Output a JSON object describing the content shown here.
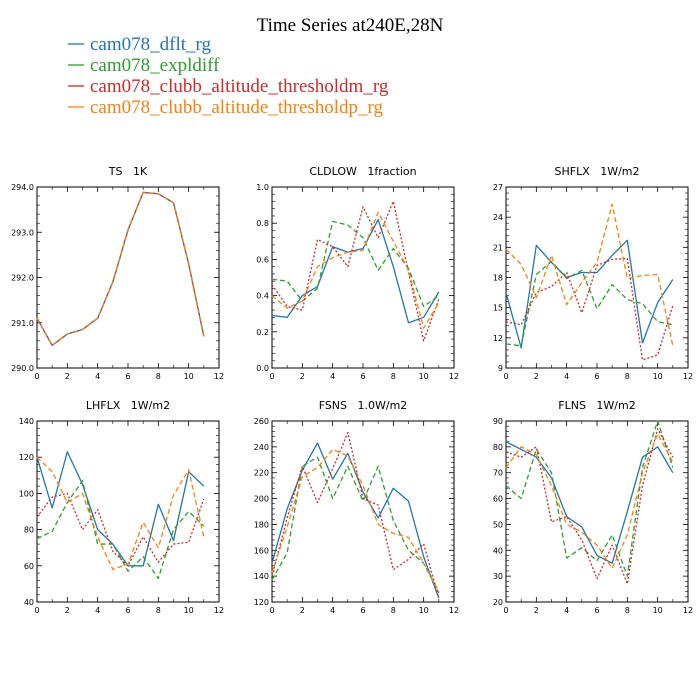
{
  "title": "Time Series at240E,28N",
  "legend": [
    {
      "name": "cam078_dflt_rg",
      "color": "#1f77b4",
      "dash": "solid"
    },
    {
      "name": "cam078_expldiff",
      "color": "#2ca02c",
      "dash": "dashed"
    },
    {
      "name": "cam078_clubb_altitude_thresholdm_rg",
      "color": "#d62728",
      "dash": "dotted"
    },
    {
      "name": "cam078_clubb_altitude_thresholdp_rg",
      "color": "#ff7f0e",
      "dash": "dashed"
    }
  ],
  "chart_data": [
    {
      "type": "line",
      "title": "TS  1K",
      "xlim": [
        0,
        12
      ],
      "ylim": [
        290.0,
        294.0
      ],
      "xticks": [
        "0",
        "2",
        "4",
        "6",
        "8",
        "10",
        "12"
      ],
      "yticks": [
        "290.0",
        "291.0",
        "292.0",
        "293.0",
        "294.0"
      ],
      "x": [
        0,
        1,
        2,
        3,
        4,
        5,
        6,
        7,
        8,
        9,
        10,
        11
      ],
      "series": [
        {
          "name": "cam078_dflt_rg",
          "values": [
            291.1,
            290.5,
            290.75,
            290.85,
            291.1,
            291.9,
            293.05,
            293.88,
            293.85,
            293.65,
            292.3,
            290.7
          ]
        },
        {
          "name": "cam078_expldiff",
          "values": [
            291.1,
            290.5,
            290.75,
            290.85,
            291.1,
            291.9,
            293.05,
            293.88,
            293.85,
            293.65,
            292.3,
            290.7
          ]
        },
        {
          "name": "cam078_clubb_altitude_thresholdm_rg",
          "values": [
            291.1,
            290.5,
            290.75,
            290.85,
            291.1,
            291.9,
            293.05,
            293.88,
            293.85,
            293.65,
            292.3,
            290.7
          ]
        },
        {
          "name": "cam078_clubb_altitude_thresholdp_rg",
          "values": [
            291.1,
            290.5,
            290.75,
            290.85,
            291.1,
            291.9,
            293.05,
            293.88,
            293.85,
            293.65,
            292.3,
            290.7
          ]
        }
      ]
    },
    {
      "type": "line",
      "title": "CLDLOW  1fraction",
      "xlim": [
        0,
        12
      ],
      "ylim": [
        0.0,
        1.0
      ],
      "xticks": [
        "0",
        "2",
        "4",
        "6",
        "8",
        "10",
        "12"
      ],
      "yticks": [
        "0.0",
        "0.2",
        "0.4",
        "0.6",
        "0.8",
        "1.0"
      ],
      "x": [
        0,
        1,
        2,
        3,
        4,
        5,
        6,
        7,
        8,
        9,
        10,
        11
      ],
      "series": [
        {
          "name": "cam078_dflt_rg",
          "values": [
            0.29,
            0.28,
            0.4,
            0.45,
            0.67,
            0.64,
            0.66,
            0.82,
            0.56,
            0.25,
            0.28,
            0.42
          ]
        },
        {
          "name": "cam078_expldiff",
          "values": [
            0.49,
            0.48,
            0.37,
            0.44,
            0.81,
            0.79,
            0.72,
            0.54,
            0.66,
            0.55,
            0.34,
            0.4
          ]
        },
        {
          "name": "cam078_clubb_altitude_thresholdm_rg",
          "values": [
            0.46,
            0.34,
            0.32,
            0.71,
            0.67,
            0.56,
            0.89,
            0.72,
            0.92,
            0.53,
            0.15,
            0.38
          ]
        },
        {
          "name": "cam078_clubb_altitude_thresholdp_rg",
          "values": [
            0.4,
            0.33,
            0.37,
            0.56,
            0.61,
            0.64,
            0.65,
            0.86,
            0.7,
            0.54,
            0.22,
            0.36
          ]
        }
      ]
    },
    {
      "type": "line",
      "title": "SHFLX  1W/m2",
      "xlim": [
        0,
        12
      ],
      "ylim": [
        9,
        27
      ],
      "xticks": [
        "0",
        "2",
        "4",
        "6",
        "8",
        "10",
        "12"
      ],
      "yticks": [
        "9",
        "12",
        "15",
        "18",
        "21",
        "24",
        "27"
      ],
      "x": [
        0,
        1,
        2,
        3,
        4,
        5,
        6,
        7,
        8,
        9,
        10,
        11
      ],
      "series": [
        {
          "name": "cam078_dflt_rg",
          "values": [
            16.5,
            11.0,
            21.2,
            19.5,
            18.0,
            18.5,
            18.5,
            20.2,
            21.7,
            11.5,
            15.5,
            17.8
          ]
        },
        {
          "name": "cam078_expldiff",
          "values": [
            11.4,
            11.2,
            18.3,
            19.6,
            17.9,
            18.7,
            14.9,
            17.3,
            15.8,
            15.4,
            13.6,
            13.3
          ]
        },
        {
          "name": "cam078_clubb_altitude_thresholdm_rg",
          "values": [
            13.6,
            13.3,
            16.5,
            17.1,
            18.5,
            14.5,
            19.2,
            19.8,
            19.9,
            9.8,
            10.3,
            15.2
          ]
        },
        {
          "name": "cam078_clubb_altitude_thresholdp_rg",
          "values": [
            20.8,
            19.3,
            16.0,
            20.2,
            15.3,
            17.5,
            19.5,
            25.3,
            17.9,
            18.2,
            18.3,
            11.2
          ]
        }
      ]
    },
    {
      "type": "line",
      "title": "LHFLX  1W/m2",
      "xlim": [
        0,
        12
      ],
      "ylim": [
        40,
        140
      ],
      "xticks": [
        "0",
        "2",
        "4",
        "6",
        "8",
        "10",
        "12"
      ],
      "yticks": [
        "40",
        "60",
        "80",
        "100",
        "120",
        "140"
      ],
      "x": [
        0,
        1,
        2,
        3,
        4,
        5,
        6,
        7,
        8,
        9,
        10,
        11
      ],
      "series": [
        {
          "name": "cam078_dflt_rg",
          "values": [
            120,
            92,
            123,
            105,
            80,
            72,
            60,
            60,
            94,
            74,
            112,
            104
          ]
        },
        {
          "name": "cam078_expldiff",
          "values": [
            75,
            79,
            95,
            107,
            72,
            72,
            57,
            65,
            53,
            80,
            90,
            82
          ]
        },
        {
          "name": "cam078_clubb_altitude_thresholdm_rg",
          "values": [
            87,
            98,
            100,
            80,
            91,
            68,
            60,
            76,
            62,
            72,
            73,
            97
          ]
        },
        {
          "name": "cam078_clubb_altitude_thresholdp_rg",
          "values": [
            120,
            112,
            95,
            100,
            76,
            58,
            61,
            84,
            70,
            99,
            113,
            76
          ]
        }
      ]
    },
    {
      "type": "line",
      "title": "FSNS  1.0W/m2",
      "xlim": [
        0,
        12
      ],
      "ylim": [
        120,
        260
      ],
      "xticks": [
        "0",
        "2",
        "4",
        "6",
        "8",
        "10",
        "12"
      ],
      "yticks": [
        "120",
        "140",
        "160",
        "180",
        "200",
        "220",
        "240",
        "260"
      ],
      "x": [
        0,
        1,
        2,
        3,
        4,
        5,
        6,
        7,
        8,
        9,
        10,
        11
      ],
      "series": [
        {
          "name": "cam078_dflt_rg",
          "values": [
            150,
            192,
            222,
            243,
            215,
            235,
            205,
            185,
            208,
            198,
            155,
            123
          ]
        },
        {
          "name": "cam078_expldiff",
          "values": [
            137,
            158,
            225,
            232,
            200,
            225,
            198,
            225,
            183,
            160,
            150,
            127
          ]
        },
        {
          "name": "cam078_clubb_altitude_thresholdm_rg",
          "values": [
            140,
            185,
            225,
            197,
            223,
            251,
            200,
            195,
            145,
            153,
            165,
            123
          ]
        },
        {
          "name": "cam078_clubb_altitude_thresholdp_rg",
          "values": [
            143,
            178,
            217,
            224,
            238,
            233,
            210,
            180,
            173,
            170,
            150,
            128
          ]
        }
      ]
    },
    {
      "type": "line",
      "title": "FLNS  1W/m2",
      "xlim": [
        0,
        12
      ],
      "ylim": [
        20,
        90
      ],
      "xticks": [
        "0",
        "2",
        "4",
        "6",
        "8",
        "10",
        "12"
      ],
      "yticks": [
        "20",
        "30",
        "40",
        "50",
        "60",
        "70",
        "80",
        "90"
      ],
      "x": [
        0,
        1,
        2,
        3,
        4,
        5,
        6,
        7,
        8,
        9,
        10,
        11
      ],
      "series": [
        {
          "name": "cam078_dflt_rg",
          "values": [
            82,
            79,
            76,
            68,
            53,
            49,
            38,
            35,
            55,
            76,
            80,
            70
          ]
        },
        {
          "name": "cam078_expldiff",
          "values": [
            65,
            60,
            79,
            70,
            37,
            41,
            36,
            46,
            30,
            72,
            90,
            72
          ]
        },
        {
          "name": "cam078_clubb_altitude_thresholdm_rg",
          "values": [
            78,
            76,
            80,
            51,
            53,
            44,
            29,
            42,
            27,
            65,
            87,
            76
          ]
        },
        {
          "name": "cam078_clubb_altitude_thresholdp_rg",
          "values": [
            72,
            80,
            77,
            65,
            50,
            47,
            42,
            33,
            46,
            70,
            85,
            74
          ]
        }
      ]
    }
  ]
}
